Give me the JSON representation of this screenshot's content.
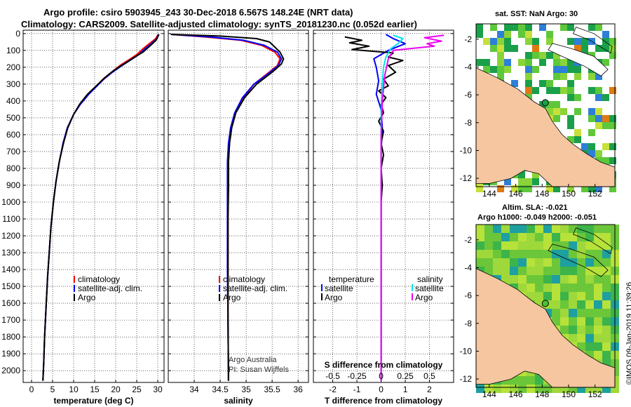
{
  "header": {
    "line1": "Argo profile: csiro 5903945_243 30-Dec-2018 6.567S 148.24E (NRT data)",
    "line2": "Climatology: CARS2009. Satellite-adjusted climatology: synTS_20181230.nc (0.052d earlier)"
  },
  "colors": {
    "climatology": "#ff0000",
    "satellite": "#0000ff",
    "argo": "#000000",
    "sat_salinity": "#00e5ee",
    "argo_salinity": "#ee00ee",
    "land": "#f5c6a0"
  },
  "chart_data": [
    {
      "type": "line",
      "id": "temperature",
      "xlabel": "temperature (deg C)",
      "xlim": [
        -2,
        31.5
      ],
      "xticks": [
        0,
        5,
        10,
        15,
        20,
        25,
        30
      ],
      "ylim": [
        2070,
        -20
      ],
      "yticks": [
        0,
        100,
        200,
        300,
        400,
        500,
        600,
        700,
        800,
        900,
        1000,
        1100,
        1200,
        1300,
        1400,
        1500,
        1600,
        1700,
        1800,
        1900,
        2000
      ],
      "legend": {
        "items": [
          "climatology",
          "satellite-adj. clim.",
          "Argo"
        ],
        "placement": "lower-center"
      },
      "series": [
        {
          "name": "climatology",
          "color": "#ff0000",
          "points": [
            [
              30.1,
              5
            ],
            [
              29.5,
              30
            ],
            [
              28,
              60
            ],
            [
              26.5,
              90
            ],
            [
              25,
              125
            ],
            [
              23.5,
              150
            ],
            [
              21,
              190
            ],
            [
              19,
              230
            ],
            [
              17,
              270
            ],
            [
              15.5,
              310
            ],
            [
              13.5,
              360
            ],
            [
              11.5,
              420
            ],
            [
              10,
              480
            ],
            [
              8.5,
              560
            ],
            [
              7.5,
              650
            ],
            [
              6.6,
              760
            ],
            [
              5.8,
              880
            ],
            [
              5.2,
              1000
            ],
            [
              4.6,
              1150
            ],
            [
              4.2,
              1300
            ],
            [
              3.8,
              1450
            ],
            [
              3.5,
              1600
            ],
            [
              3.1,
              1800
            ],
            [
              2.9,
              1950
            ],
            [
              2.7,
              2060
            ]
          ]
        },
        {
          "name": "satellite-adj. clim.",
          "color": "#0000ff",
          "points": [
            [
              30.3,
              5
            ],
            [
              29.8,
              30
            ],
            [
              28.5,
              60
            ],
            [
              27,
              90
            ],
            [
              25.5,
              125
            ],
            [
              24,
              150
            ],
            [
              21.5,
              190
            ],
            [
              19.2,
              230
            ],
            [
              17.2,
              270
            ],
            [
              15.6,
              310
            ],
            [
              13.6,
              360
            ],
            [
              11.6,
              420
            ],
            [
              10,
              480
            ],
            [
              8.5,
              560
            ],
            [
              7.5,
              650
            ],
            [
              6.6,
              760
            ],
            [
              5.8,
              880
            ],
            [
              5.2,
              1000
            ],
            [
              4.6,
              1150
            ],
            [
              4.2,
              1300
            ],
            [
              3.8,
              1450
            ],
            [
              3.5,
              1600
            ],
            [
              3.1,
              1800
            ],
            [
              2.9,
              1950
            ],
            [
              2.7,
              2060
            ]
          ]
        },
        {
          "name": "Argo",
          "color": "#000000",
          "points": [
            [
              30.2,
              5
            ],
            [
              29.6,
              40
            ],
            [
              28.3,
              70
            ],
            [
              26.5,
              110
            ],
            [
              24.5,
              140
            ],
            [
              22,
              180
            ],
            [
              19.5,
              220
            ],
            [
              17.5,
              260
            ],
            [
              15.4,
              310
            ],
            [
              13.3,
              360
            ],
            [
              11.4,
              420
            ],
            [
              10,
              480
            ],
            [
              8.6,
              560
            ],
            [
              7.6,
              650
            ],
            [
              6.6,
              760
            ],
            [
              5.8,
              880
            ],
            [
              5.2,
              1000
            ],
            [
              4.6,
              1150
            ],
            [
              4.2,
              1300
            ],
            [
              3.8,
              1450
            ],
            [
              3.5,
              1600
            ],
            [
              3.1,
              1800
            ],
            [
              2.9,
              1950
            ],
            [
              2.7,
              2060
            ]
          ]
        }
      ]
    },
    {
      "type": "line",
      "id": "salinity",
      "xlabel": "salinity",
      "xlim": [
        33.5,
        36.2
      ],
      "xticks": [
        34,
        34.5,
        35,
        35.5,
        36
      ],
      "ylim": [
        2070,
        -20
      ],
      "legend": {
        "items": [
          "climatology",
          "satellite-adj. clim.",
          "Argo"
        ],
        "placement": "lower-center"
      },
      "annotations": [
        "Argo Australia",
        "PI: Susan Wijffels"
      ],
      "series": [
        {
          "name": "climatology",
          "color": "#ff0000",
          "points": [
            [
              33.55,
              5
            ],
            [
              34.2,
              20
            ],
            [
              34.9,
              40
            ],
            [
              35.3,
              70
            ],
            [
              35.55,
              110
            ],
            [
              35.65,
              150
            ],
            [
              35.6,
              190
            ],
            [
              35.4,
              240
            ],
            [
              35.15,
              300
            ],
            [
              34.95,
              380
            ],
            [
              34.8,
              470
            ],
            [
              34.72,
              560
            ],
            [
              34.68,
              650
            ],
            [
              34.66,
              760
            ],
            [
              34.66,
              900
            ],
            [
              34.65,
              1100
            ],
            [
              34.65,
              1400
            ],
            [
              34.65,
              1700
            ],
            [
              34.66,
              2060
            ]
          ]
        },
        {
          "name": "satellite-adj. clim.",
          "color": "#0000ff",
          "points": [
            [
              33.55,
              5
            ],
            [
              34.3,
              20
            ],
            [
              34.95,
              40
            ],
            [
              35.35,
              70
            ],
            [
              35.6,
              110
            ],
            [
              35.68,
              150
            ],
            [
              35.62,
              190
            ],
            [
              35.42,
              240
            ],
            [
              35.15,
              300
            ],
            [
              34.93,
              380
            ],
            [
              34.78,
              470
            ],
            [
              34.7,
              560
            ],
            [
              34.66,
              650
            ],
            [
              34.64,
              760
            ],
            [
              34.64,
              900
            ],
            [
              34.64,
              1100
            ],
            [
              34.64,
              1400
            ],
            [
              34.65,
              1700
            ],
            [
              34.66,
              2060
            ]
          ]
        },
        {
          "name": "Argo",
          "color": "#000000",
          "points": [
            [
              33.55,
              5
            ],
            [
              34.5,
              15
            ],
            [
              35.2,
              30
            ],
            [
              35.45,
              50
            ],
            [
              35.55,
              80
            ],
            [
              35.65,
              110
            ],
            [
              35.72,
              150
            ],
            [
              35.68,
              180
            ],
            [
              35.5,
              230
            ],
            [
              35.2,
              300
            ],
            [
              34.97,
              380
            ],
            [
              34.8,
              470
            ],
            [
              34.72,
              560
            ],
            [
              34.68,
              650
            ],
            [
              34.66,
              760
            ],
            [
              34.66,
              900
            ],
            [
              34.65,
              1100
            ],
            [
              34.65,
              1400
            ],
            [
              34.65,
              1700
            ],
            [
              34.66,
              2060
            ]
          ]
        }
      ]
    },
    {
      "type": "line",
      "id": "differences",
      "xlabel": "T difference from climatology",
      "xlabel2": "S difference from climatology",
      "xlim": [
        -2.8,
        3.0
      ],
      "xticks": [
        -2,
        -1,
        0,
        1,
        2
      ],
      "xticks2_labels": [
        "-0.5",
        "-0.25",
        "0",
        "0.25",
        "0.5"
      ],
      "ylim": [
        2070,
        -20
      ],
      "legend_temperature": {
        "heading": "temperature",
        "items": [
          "satellite",
          "Argo"
        ]
      },
      "legend_salinity": {
        "heading": "salinity",
        "items": [
          "satellite",
          "Argo"
        ]
      },
      "series": [
        {
          "name": "T satellite",
          "color": "#0000ff",
          "points": [
            [
              0.2,
              5
            ],
            [
              0.5,
              30
            ],
            [
              1.0,
              60
            ],
            [
              0.3,
              100
            ],
            [
              -0.3,
              150
            ],
            [
              -0.2,
              200
            ],
            [
              -0.1,
              280
            ],
            [
              -0.2,
              360
            ],
            [
              0.0,
              450
            ],
            [
              0.05,
              560
            ],
            [
              0,
              700
            ],
            [
              0,
              900
            ],
            [
              0,
              1200
            ],
            [
              0,
              1500
            ],
            [
              0,
              1800
            ],
            [
              0,
              2060
            ]
          ]
        },
        {
          "name": "T Argo",
          "color": "#000000",
          "points": [
            [
              -1.5,
              20
            ],
            [
              -0.8,
              40
            ],
            [
              -1.3,
              55
            ],
            [
              -0.5,
              75
            ],
            [
              -1.2,
              95
            ],
            [
              0.5,
              115
            ],
            [
              0.3,
              140
            ],
            [
              0.9,
              160
            ],
            [
              0.3,
              190
            ],
            [
              0.6,
              230
            ],
            [
              0.1,
              270
            ],
            [
              0.3,
              310
            ],
            [
              -0.1,
              340
            ],
            [
              0.2,
              380
            ],
            [
              0,
              420
            ],
            [
              0.1,
              470
            ],
            [
              -0.1,
              520
            ],
            [
              0.1,
              580
            ],
            [
              0,
              650
            ],
            [
              0.1,
              720
            ],
            [
              0,
              800
            ],
            [
              0.05,
              900
            ],
            [
              0,
              1000
            ],
            [
              0,
              1300
            ],
            [
              0,
              1500
            ],
            [
              0,
              1800
            ],
            [
              0,
              2060
            ]
          ]
        },
        {
          "name": "S satellite",
          "color": "#00e5ee",
          "points": [
            [
              0.5,
              10
            ],
            [
              0.9,
              30
            ],
            [
              0.7,
              60
            ],
            [
              0.4,
              90
            ],
            [
              0.2,
              140
            ],
            [
              0.1,
              200
            ],
            [
              0.05,
              300
            ],
            [
              0,
              500
            ],
            [
              0,
              800
            ],
            [
              0,
              1200
            ],
            [
              0,
              1600
            ],
            [
              0,
              2060
            ]
          ]
        },
        {
          "name": "S Argo",
          "color": "#ee00ee",
          "points": [
            [
              2.6,
              10
            ],
            [
              1.8,
              25
            ],
            [
              2.5,
              45
            ],
            [
              1.9,
              60
            ],
            [
              2.2,
              75
            ],
            [
              0.5,
              100
            ],
            [
              0.3,
              150
            ],
            [
              0.15,
              250
            ],
            [
              0.05,
              400
            ],
            [
              0,
              600
            ],
            [
              0,
              800
            ],
            [
              0,
              1000
            ],
            [
              0,
              1500
            ],
            [
              0,
              2060
            ]
          ]
        }
      ]
    }
  ],
  "maps": {
    "sst": {
      "title": "sat. SST: NaN Argo: 30",
      "yticks": [
        "-2",
        "-4",
        "-6",
        "-8",
        "-10",
        "-12"
      ],
      "xticks": [
        "144",
        "146",
        "148",
        "150",
        "152"
      ]
    },
    "sla": {
      "title1": "Altim. SLA: -0.021",
      "title2": "Argo h1000: -0.049 h2000: -0.051",
      "yticks": [
        "-2",
        "-4",
        "-6",
        "-8",
        "-10",
        "-12"
      ],
      "xticks": [
        "144",
        "146",
        "148",
        "150",
        "152"
      ]
    }
  },
  "footer": {
    "stamp": "©IMOS 09-Jan-2019 11:39:26"
  }
}
